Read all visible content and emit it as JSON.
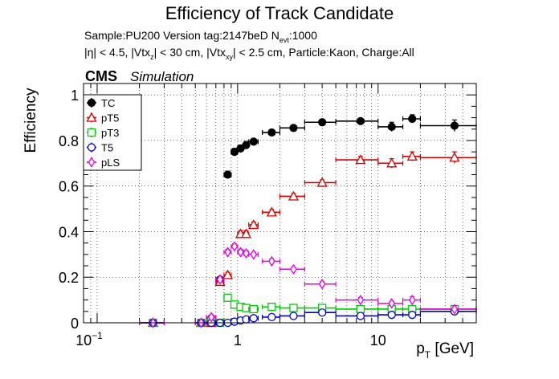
{
  "chart_data": {
    "type": "scatter",
    "title": "Efficiency of Track Candidate",
    "subtitle_line1": {
      "text": "Sample:PU200   Version tag:2147beD  N",
      "sub": "evt",
      "tail": ":1000"
    },
    "subtitle_line2": {
      "p1": "|η| < 4.5, |Vtx",
      "s1": "z",
      "p2": "| < 30 cm, |Vtx",
      "s2": "xy",
      "p3": "| < 2.5 cm, Particle:Kaon, Charge:All"
    },
    "cms_label": "CMS",
    "sim_label": "Simulation",
    "ylabel": "Efficiency",
    "xlabel": {
      "main": "p",
      "sub": "T",
      "unit": " [GeV]"
    },
    "xscale": "log",
    "xlim": [
      0.08,
      50
    ],
    "ylim": [
      0,
      1.05
    ],
    "grid": true,
    "legend_position": "top-left",
    "xticks": [
      {
        "value": 0.1,
        "base": "10",
        "exp": "−1"
      },
      {
        "value": 1,
        "label": "1"
      },
      {
        "value": 10,
        "label": "10"
      }
    ],
    "yticks": [
      {
        "value": 0,
        "label": "0"
      },
      {
        "value": 0.2,
        "label": "0.2"
      },
      {
        "value": 0.4,
        "label": "0.4"
      },
      {
        "value": 0.6,
        "label": "0.6"
      },
      {
        "value": 0.8,
        "label": "0.8"
      },
      {
        "value": 1,
        "label": "1"
      }
    ],
    "series": [
      {
        "name": "TC",
        "color": "#000000",
        "marker": "circle-filled",
        "points": [
          [
            0.25,
            0.2,
            0.3,
            0.0,
            0.0
          ],
          [
            0.55,
            0.5,
            0.6,
            0.0,
            0.0
          ],
          [
            0.65,
            0.6,
            0.7,
            0.02,
            0.01
          ],
          [
            0.75,
            0.7,
            0.8,
            0.19,
            0.01
          ],
          [
            0.85,
            0.8,
            0.9,
            0.65,
            0.015
          ],
          [
            0.95,
            0.9,
            1.0,
            0.75,
            0.015
          ],
          [
            1.05,
            1.0,
            1.1,
            0.765,
            0.015
          ],
          [
            1.15,
            1.1,
            1.2,
            0.78,
            0.015
          ],
          [
            1.3,
            1.2,
            1.4,
            0.795,
            0.012
          ],
          [
            1.75,
            1.5,
            2.0,
            0.835,
            0.012
          ],
          [
            2.5,
            2.0,
            3.0,
            0.855,
            0.012
          ],
          [
            4.0,
            3.0,
            5.0,
            0.88,
            0.01
          ],
          [
            7.5,
            5.0,
            10.0,
            0.885,
            0.012
          ],
          [
            12.5,
            10.0,
            15.0,
            0.86,
            0.02
          ],
          [
            17.5,
            15.0,
            20.0,
            0.895,
            0.018
          ],
          [
            35.0,
            20.0,
            50.0,
            0.865,
            0.025
          ]
        ]
      },
      {
        "name": "pT5",
        "color": "#d40000",
        "marker": "triangle-open",
        "points": [
          [
            0.25,
            0.2,
            0.3,
            0.0,
            0.0
          ],
          [
            0.55,
            0.5,
            0.6,
            0.0,
            0.0
          ],
          [
            0.65,
            0.6,
            0.7,
            0.0,
            0.0
          ],
          [
            0.75,
            0.7,
            0.8,
            0.18,
            0.01
          ],
          [
            0.85,
            0.8,
            0.9,
            0.21,
            0.012
          ],
          [
            1.05,
            1.0,
            1.1,
            0.39,
            0.015
          ],
          [
            1.15,
            1.1,
            1.2,
            0.39,
            0.015
          ],
          [
            1.3,
            1.2,
            1.4,
            0.43,
            0.012
          ],
          [
            1.75,
            1.5,
            2.0,
            0.485,
            0.012
          ],
          [
            2.5,
            2.0,
            3.0,
            0.555,
            0.012
          ],
          [
            4.0,
            3.0,
            5.0,
            0.615,
            0.012
          ],
          [
            7.5,
            5.0,
            10.0,
            0.715,
            0.015
          ],
          [
            12.5,
            10.0,
            15.0,
            0.7,
            0.02
          ],
          [
            17.5,
            15.0,
            20.0,
            0.73,
            0.02
          ],
          [
            35.0,
            20.0,
            50.0,
            0.725,
            0.025
          ]
        ]
      },
      {
        "name": "pT3",
        "color": "#00cc00",
        "marker": "square-open",
        "points": [
          [
            0.25,
            0.2,
            0.3,
            0.0,
            0.0
          ],
          [
            0.55,
            0.5,
            0.6,
            0.0,
            0.0
          ],
          [
            0.65,
            0.6,
            0.7,
            0.01,
            0.01
          ],
          [
            0.75,
            0.7,
            0.8,
            0.0,
            0.0
          ],
          [
            0.85,
            0.8,
            0.9,
            0.11,
            0.01
          ],
          [
            0.95,
            0.9,
            1.0,
            0.08,
            0.01
          ],
          [
            1.05,
            1.0,
            1.1,
            0.07,
            0.01
          ],
          [
            1.15,
            1.1,
            1.2,
            0.065,
            0.01
          ],
          [
            1.3,
            1.2,
            1.4,
            0.06,
            0.008
          ],
          [
            1.75,
            1.5,
            2.0,
            0.07,
            0.008
          ],
          [
            2.5,
            2.0,
            3.0,
            0.065,
            0.008
          ],
          [
            4.0,
            3.0,
            5.0,
            0.065,
            0.008
          ],
          [
            7.5,
            5.0,
            10.0,
            0.06,
            0.008
          ],
          [
            12.5,
            10.0,
            15.0,
            0.06,
            0.01
          ],
          [
            17.5,
            15.0,
            20.0,
            0.06,
            0.01
          ],
          [
            35.0,
            20.0,
            50.0,
            0.06,
            0.01
          ]
        ]
      },
      {
        "name": "T5",
        "color": "#0000cc",
        "marker": "circle-open",
        "points": [
          [
            0.25,
            0.2,
            0.3,
            0.0,
            0.0
          ],
          [
            0.55,
            0.5,
            0.6,
            0.0,
            0.0
          ],
          [
            0.65,
            0.6,
            0.7,
            0.0,
            0.0
          ],
          [
            0.75,
            0.7,
            0.8,
            0.0,
            0.0
          ],
          [
            0.85,
            0.8,
            0.9,
            0.0,
            0.0
          ],
          [
            0.95,
            0.9,
            1.0,
            0.005,
            0.005
          ],
          [
            1.05,
            1.0,
            1.1,
            0.01,
            0.005
          ],
          [
            1.15,
            1.1,
            1.2,
            0.015,
            0.005
          ],
          [
            1.3,
            1.2,
            1.4,
            0.02,
            0.005
          ],
          [
            1.75,
            1.5,
            2.0,
            0.025,
            0.005
          ],
          [
            2.5,
            2.0,
            3.0,
            0.03,
            0.005
          ],
          [
            4.0,
            3.0,
            5.0,
            0.045,
            0.006
          ],
          [
            7.5,
            5.0,
            10.0,
            0.03,
            0.006
          ],
          [
            12.5,
            10.0,
            15.0,
            0.035,
            0.008
          ],
          [
            17.5,
            15.0,
            20.0,
            0.035,
            0.008
          ],
          [
            35.0,
            20.0,
            50.0,
            0.05,
            0.01
          ]
        ]
      },
      {
        "name": "pLS",
        "color": "#e600e6",
        "marker": "diamond-open",
        "points": [
          [
            0.25,
            0.2,
            0.3,
            0.0,
            0.0
          ],
          [
            0.55,
            0.5,
            0.6,
            0.0,
            0.0
          ],
          [
            0.65,
            0.6,
            0.7,
            0.025,
            0.01
          ],
          [
            0.75,
            0.7,
            0.8,
            0.19,
            0.01
          ],
          [
            0.85,
            0.8,
            0.9,
            0.31,
            0.012
          ],
          [
            0.95,
            0.9,
            1.0,
            0.335,
            0.012
          ],
          [
            1.05,
            1.0,
            1.1,
            0.31,
            0.012
          ],
          [
            1.15,
            1.1,
            1.2,
            0.305,
            0.012
          ],
          [
            1.3,
            1.2,
            1.4,
            0.3,
            0.01
          ],
          [
            1.75,
            1.5,
            2.0,
            0.27,
            0.01
          ],
          [
            2.5,
            2.0,
            3.0,
            0.235,
            0.01
          ],
          [
            4.0,
            3.0,
            5.0,
            0.17,
            0.01
          ],
          [
            7.5,
            5.0,
            10.0,
            0.1,
            0.01
          ],
          [
            12.5,
            10.0,
            15.0,
            0.085,
            0.01
          ],
          [
            17.5,
            15.0,
            20.0,
            0.1,
            0.015
          ],
          [
            35.0,
            20.0,
            50.0,
            0.06,
            0.015
          ]
        ]
      }
    ]
  }
}
